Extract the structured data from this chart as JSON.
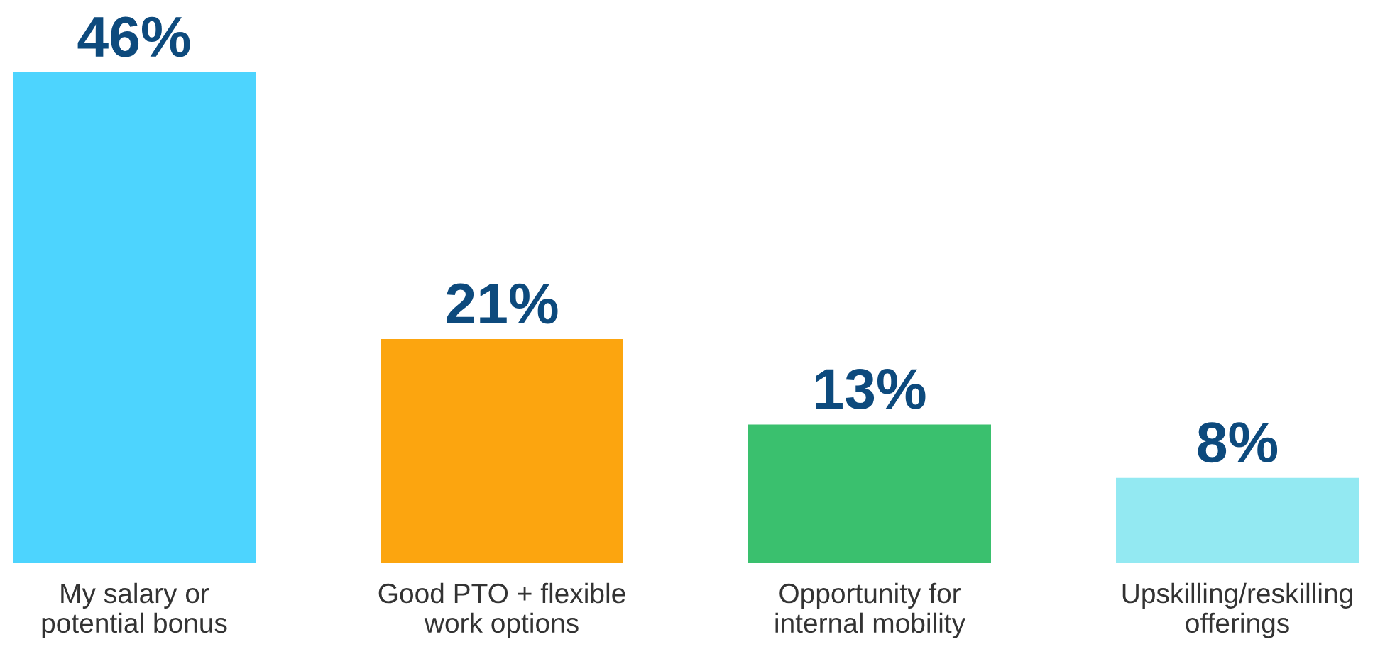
{
  "chart_data": {
    "type": "bar",
    "categories": [
      "My salary or\npotential bonus",
      "Good PTO + flexible\nwork options",
      "Opportunity for\ninternal mobility",
      "Upskilling/reskilling\nofferings"
    ],
    "values": [
      46,
      21,
      13,
      8
    ],
    "colors": [
      "#4dd4fe",
      "#fca50f",
      "#3ac06e",
      "#93e9f2"
    ],
    "value_labels": [
      "46%",
      "21%",
      "13%",
      "8%"
    ],
    "grid": false,
    "legend": false
  }
}
